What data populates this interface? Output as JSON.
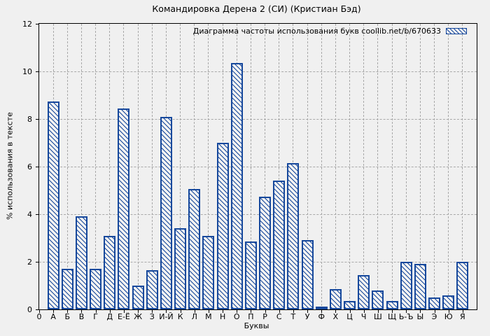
{
  "chart": {
    "title": "Командировка Дерена 2 (СИ) (Кристиан Бэд)",
    "legend_label": "Диаграмма частоты использования букв coollib.net/b/670633",
    "xlabel": "Буквы",
    "ylabel": "% использования в тексте"
  },
  "chart_data": {
    "type": "bar",
    "title": "Командировка Дерена 2 (СИ) (Кристиан Бэд)",
    "legend": "Диаграмма частоты использования букв coollib.net/b/670633",
    "legend_position": "top-right",
    "xlabel": "Буквы",
    "ylabel": "% использования в тексте",
    "categories": [
      "А",
      "Б",
      "В",
      "Г",
      "Д",
      "Е-Ё",
      "Ж",
      "З",
      "И-Й",
      "К",
      "Л",
      "М",
      "Н",
      "О",
      "П",
      "Р",
      "С",
      "Т",
      "У",
      "Ф",
      "Х",
      "Ц",
      "Ч",
      "Ш",
      "Щ",
      "Ь-Ъ",
      "Ы",
      "Э",
      "Ю",
      "Я"
    ],
    "values": [
      8.75,
      1.7,
      3.9,
      1.7,
      3.1,
      8.45,
      1.0,
      1.65,
      8.1,
      3.4,
      5.05,
      3.1,
      7.0,
      10.35,
      2.85,
      4.75,
      5.4,
      6.15,
      2.9,
      0.1,
      0.85,
      0.35,
      1.45,
      0.8,
      0.35,
      2.0,
      1.9,
      0.5,
      0.6,
      2.0
    ],
    "ylim": [
      0,
      12
    ],
    "yticks": [
      0,
      2,
      4,
      6,
      8,
      10,
      12
    ],
    "x_origin_label": "0",
    "grid": true,
    "hatch": "diagonal-backslash",
    "colors": {
      "bar": "#16489c",
      "bar_fill": "#f2f2f2",
      "background": "#f0f0f0",
      "grid": "#a9a9a9",
      "axis": "#000000",
      "text": "#000000"
    }
  }
}
